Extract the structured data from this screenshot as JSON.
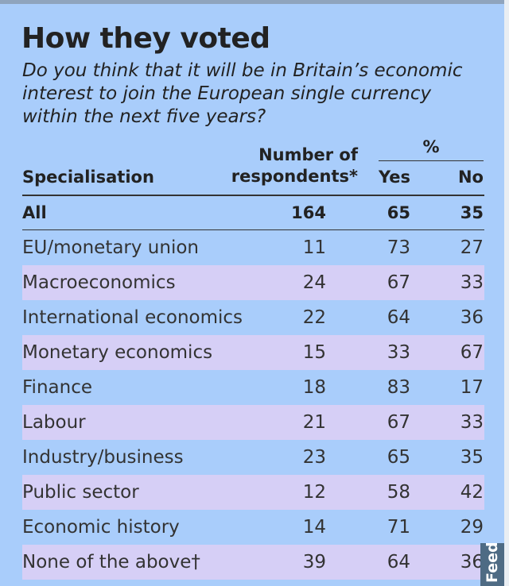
{
  "title": "How they voted",
  "subtitle": "Do you think that it will be in Britain’s economic interest to join the European single currency within the next five years?",
  "chart_data": {
    "type": "table",
    "columns": {
      "specialisation": "Specialisation",
      "respondents": "Number of respondents*",
      "percent_group": "%",
      "yes": "Yes",
      "no": "No"
    },
    "rows": [
      {
        "specialisation": "All",
        "respondents": "164",
        "yes": "65",
        "no": "35"
      },
      {
        "specialisation": "EU/monetary union",
        "respondents": "11",
        "yes": "73",
        "no": "27"
      },
      {
        "specialisation": "Macroeconomics",
        "respondents": "24",
        "yes": "67",
        "no": "33"
      },
      {
        "specialisation": "International economics",
        "respondents": "22",
        "yes": "64",
        "no": "36"
      },
      {
        "specialisation": "Monetary economics",
        "respondents": "15",
        "yes": "33",
        "no": "67"
      },
      {
        "specialisation": "Finance",
        "respondents": "18",
        "yes": "83",
        "no": "17"
      },
      {
        "specialisation": "Labour",
        "respondents": "21",
        "yes": "67",
        "no": "33"
      },
      {
        "specialisation": "Industry/business",
        "respondents": "23",
        "yes": "65",
        "no": "35"
      },
      {
        "specialisation": "Public sector",
        "respondents": "12",
        "yes": "58",
        "no": "42"
      },
      {
        "specialisation": "Economic history",
        "respondents": "14",
        "yes": "71",
        "no": "29"
      },
      {
        "specialisation": "None of the above†",
        "respondents": "39",
        "yes": "64",
        "no": "36"
      }
    ]
  },
  "feedback_tab": {
    "label": "Feedback"
  },
  "colors": {
    "background": "#a9cdfb",
    "alt_row": "#d6cff6",
    "feedback_tab": "#4e6b84"
  }
}
